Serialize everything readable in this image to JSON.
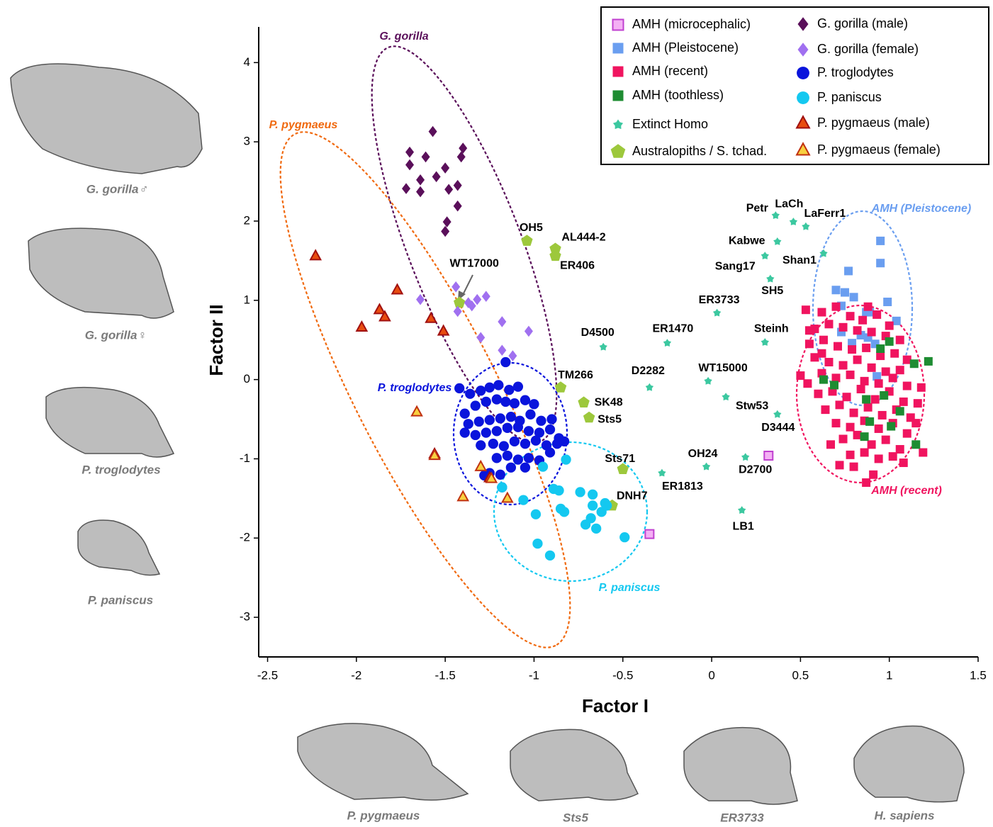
{
  "chart_data": {
    "type": "scatter",
    "xlabel": "Factor I",
    "ylabel": "Factor II",
    "xlim": [
      -2.55,
      1.5
    ],
    "ylim": [
      -3.5,
      4.45
    ],
    "xticks": [
      -2.5,
      -2,
      -1.5,
      -1,
      -0.5,
      0,
      0.5,
      1,
      1.5
    ],
    "yticks": [
      -3,
      -2,
      -1,
      0,
      1,
      2,
      3,
      4
    ],
    "legend": "upper right",
    "group_labels": [
      "G. gorilla",
      "P. pygmaeus",
      "P. troglodytes",
      "P. paniscus",
      "AMH (Pleistocene)",
      "AMH (recent)"
    ],
    "series": [
      {
        "name": "AMH (microcephalic)",
        "marker": "square",
        "color": "#f4b0f4",
        "edgecolor": "#c040d0",
        "x": [
          0.32,
          -0.35
        ],
        "y": [
          -0.96,
          -1.95
        ]
      },
      {
        "name": "AMH (Pleistocene)",
        "marker": "square",
        "color": "#6a9ef0",
        "x": [
          0.95,
          0.95,
          0.77,
          0.7,
          0.75,
          0.73,
          0.8,
          0.87,
          0.89,
          0.99,
          1.04,
          0.73,
          0.79,
          0.88,
          0.92,
          0.93,
          0.84
        ],
        "y": [
          1.75,
          1.47,
          1.37,
          1.13,
          1.1,
          0.93,
          1.04,
          0.85,
          0.85,
          0.98,
          0.74,
          0.6,
          0.46,
          0.53,
          0.45,
          0.04,
          0.56
        ]
      },
      {
        "name": "AMH (recent)",
        "marker": "square",
        "color": "#f0145f",
        "x": [
          0.53,
          0.62,
          0.7,
          0.78,
          0.85,
          0.93,
          1.0,
          0.58,
          0.66,
          0.74,
          0.82,
          0.9,
          0.98,
          1.06,
          0.55,
          0.63,
          0.71,
          0.79,
          0.87,
          0.95,
          1.03,
          1.1,
          0.5,
          0.58,
          0.66,
          0.74,
          0.82,
          0.9,
          0.98,
          1.06,
          0.54,
          0.62,
          0.7,
          0.78,
          0.86,
          0.94,
          1.02,
          1.1,
          1.18,
          0.6,
          0.68,
          0.76,
          0.84,
          0.92,
          1.0,
          1.08,
          1.16,
          0.64,
          0.72,
          0.8,
          0.88,
          0.96,
          1.04,
          1.12,
          0.7,
          0.78,
          0.86,
          0.94,
          1.02,
          1.1,
          0.74,
          0.82,
          0.9,
          0.98,
          1.06,
          0.78,
          0.86,
          0.94,
          1.02,
          0.72,
          0.8,
          0.91,
          1.08,
          0.87,
          1.19,
          0.55,
          0.62,
          0.88,
          0.67,
          1.15
        ],
        "y": [
          0.88,
          0.85,
          0.92,
          0.8,
          0.75,
          0.82,
          0.68,
          0.64,
          0.7,
          0.66,
          0.62,
          0.6,
          0.55,
          0.5,
          0.45,
          0.5,
          0.42,
          0.38,
          0.4,
          0.3,
          0.33,
          0.25,
          0.05,
          0.28,
          0.22,
          0.18,
          0.25,
          0.15,
          0.1,
          0.12,
          -0.05,
          0.08,
          0.02,
          0.06,
          -0.02,
          -0.05,
          0.02,
          -0.08,
          -0.1,
          -0.18,
          -0.15,
          -0.22,
          -0.12,
          -0.25,
          -0.15,
          -0.28,
          -0.3,
          -0.38,
          -0.32,
          -0.42,
          -0.35,
          -0.45,
          -0.38,
          -0.48,
          -0.55,
          -0.6,
          -0.52,
          -0.62,
          -0.55,
          -0.68,
          -0.75,
          -0.7,
          -0.82,
          -0.76,
          -0.88,
          -0.95,
          -0.92,
          -1.0,
          -0.97,
          -1.08,
          -1.1,
          -1.2,
          -1.05,
          -1.3,
          -0.92,
          0.62,
          0.33,
          0.92,
          -0.82,
          -0.55
        ]
      },
      {
        "name": "AMH (toothless)",
        "marker": "square",
        "color": "#1e8c32",
        "x": [
          0.95,
          1.0,
          1.14,
          1.22,
          0.63,
          0.69,
          0.87,
          0.97,
          1.06,
          1.01,
          0.86,
          1.15,
          0.89
        ],
        "y": [
          0.39,
          0.48,
          0.2,
          0.23,
          0.0,
          -0.07,
          -0.25,
          -0.2,
          -0.4,
          -0.59,
          -0.72,
          -0.82,
          -0.53
        ]
      },
      {
        "name": "Extinct Homo",
        "marker": "star",
        "color": "#3cc8a0",
        "x": [
          0.36,
          0.46,
          0.53,
          0.37,
          0.63,
          0.3,
          0.33,
          0.03,
          0.3,
          -0.25,
          -0.61,
          -0.35,
          -0.02,
          0.08,
          0.37,
          -0.03,
          0.19,
          -0.28,
          0.17
        ],
        "y": [
          2.07,
          1.99,
          1.93,
          1.74,
          1.59,
          1.56,
          1.27,
          0.84,
          0.47,
          0.46,
          0.41,
          -0.1,
          -0.02,
          -0.22,
          -0.44,
          -1.1,
          -0.98,
          -1.18,
          -1.65
        ],
        "labels": [
          "Petr",
          "LaCh",
          "LaFerr1",
          "Kabwe",
          "Shan1",
          "Sang17",
          "SH5",
          "ER3733",
          "Steinh",
          "ER1470",
          "D4500",
          "D2282",
          "WT15000",
          "Stw53",
          "D3444",
          "OH24",
          "D2700",
          "ER1813",
          "LB1"
        ]
      },
      {
        "name": "Australopiths / S. tchad.",
        "marker": "pentagon",
        "color": "#9dc83c",
        "x": [
          -1.04,
          -0.88,
          -0.88,
          -1.42,
          -0.85,
          -0.72,
          -0.69,
          -0.5,
          -0.56
        ],
        "y": [
          1.75,
          1.65,
          1.56,
          0.97,
          -0.1,
          -0.29,
          -0.48,
          -1.13,
          -1.59
        ],
        "labels": [
          "OH5",
          "AL444-2",
          "ER406",
          "WT17000",
          "TM266",
          "SK48",
          "Sts5",
          "Sts71",
          "DNH7"
        ]
      },
      {
        "name": "G. gorilla (male)",
        "marker": "diamond",
        "color": "#5a0f5a",
        "x": [
          -1.57,
          -1.7,
          -1.61,
          -1.7,
          -1.5,
          -1.4,
          -1.41,
          -1.72,
          -1.64,
          -1.55,
          -1.64,
          -1.48,
          -1.43,
          -1.43,
          -1.49,
          -1.5
        ],
        "y": [
          3.13,
          2.87,
          2.81,
          2.71,
          2.67,
          2.92,
          2.81,
          2.41,
          2.52,
          2.56,
          2.37,
          2.4,
          2.45,
          2.19,
          1.99,
          1.87
        ]
      },
      {
        "name": "G. gorilla (female)",
        "marker": "diamond",
        "color": "#a070f0",
        "x": [
          -1.44,
          -1.64,
          -1.43,
          -1.37,
          -1.35,
          -1.32,
          -1.27,
          -1.18,
          -1.3,
          -1.03,
          -1.18,
          -1.12
        ],
        "y": [
          1.17,
          1.01,
          0.86,
          0.97,
          0.93,
          1.01,
          1.05,
          0.73,
          0.53,
          0.61,
          0.37,
          0.3
        ]
      },
      {
        "name": "P. troglodytes",
        "marker": "circle",
        "color": "#0a14dc",
        "x": [
          -1.16,
          -1.42,
          -1.36,
          -1.3,
          -1.25,
          -1.2,
          -1.14,
          -1.09,
          -1.39,
          -1.33,
          -1.27,
          -1.21,
          -1.16,
          -1.11,
          -1.05,
          -1.0,
          -1.37,
          -1.31,
          -1.25,
          -1.19,
          -1.13,
          -1.08,
          -1.02,
          -0.96,
          -0.9,
          -1.39,
          -1.33,
          -1.27,
          -1.21,
          -1.15,
          -1.09,
          -1.03,
          -0.97,
          -0.91,
          -0.86,
          -1.3,
          -1.23,
          -1.17,
          -1.11,
          -1.05,
          -0.99,
          -0.93,
          -0.87,
          -0.83,
          -1.21,
          -1.15,
          -1.09,
          -1.03,
          -0.97,
          -0.91,
          -1.25,
          -1.19,
          -1.05,
          -1.13,
          -1.28,
          -1.18
        ],
        "y": [
          0.22,
          -0.11,
          -0.18,
          -0.14,
          -0.1,
          -0.07,
          -0.13,
          -0.09,
          -0.43,
          -0.33,
          -0.28,
          -0.25,
          -0.28,
          -0.3,
          -0.26,
          -0.31,
          -0.56,
          -0.53,
          -0.51,
          -0.49,
          -0.47,
          -0.52,
          -0.44,
          -0.52,
          -0.5,
          -0.67,
          -0.7,
          -0.67,
          -0.65,
          -0.61,
          -0.6,
          -0.65,
          -0.67,
          -0.63,
          -0.74,
          -0.83,
          -0.81,
          -0.84,
          -0.78,
          -0.81,
          -0.77,
          -0.83,
          -0.81,
          -0.78,
          -0.99,
          -0.96,
          -1.01,
          -0.99,
          -1.02,
          -0.92,
          -1.18,
          -1.2,
          -1.11,
          -1.11,
          -1.21,
          -1.36
        ]
      },
      {
        "name": "P. paniscus",
        "marker": "circle",
        "color": "#14c8f0",
        "x": [
          -0.82,
          -0.95,
          -1.18,
          -1.06,
          -0.99,
          -0.89,
          -0.86,
          -0.85,
          -0.83,
          -0.74,
          -0.67,
          -0.67,
          -0.68,
          -0.6,
          -0.62,
          -0.71,
          -0.65,
          -0.98,
          -0.91,
          -0.49,
          -0.59
        ],
        "y": [
          -1.01,
          -1.1,
          -1.36,
          -1.52,
          -1.7,
          -1.38,
          -1.4,
          -1.63,
          -1.67,
          -1.42,
          -1.45,
          -1.59,
          -1.75,
          -1.56,
          -1.67,
          -1.83,
          -1.88,
          -2.07,
          -2.22,
          -1.99,
          -1.59
        ]
      },
      {
        "name": "P. pygmaeus (male)",
        "marker": "triangle",
        "color": "#e84d10",
        "edgecolor": "#a01010",
        "x": [
          -2.23,
          -1.77,
          -1.87,
          -1.84,
          -1.97,
          -1.58,
          -1.51,
          -1.56,
          -1.25
        ],
        "y": [
          1.56,
          1.13,
          0.88,
          0.79,
          0.66,
          0.77,
          0.61,
          -0.94,
          -1.24
        ]
      },
      {
        "name": "P. pygmaeus (female)",
        "marker": "triangle",
        "color": "#f8d040",
        "edgecolor": "#c03010",
        "x": [
          -1.66,
          -1.3,
          -1.4,
          -1.15,
          -1.24,
          -1.56
        ],
        "y": [
          -0.41,
          -1.1,
          -1.48,
          -1.5,
          -1.25,
          -0.96
        ]
      }
    ]
  },
  "skull_captions": [
    "G. gorilla♂",
    "G. gorilla♀",
    "P. troglodytes",
    "P. paniscus",
    "P. pygmaeus",
    "Sts5",
    "ER3733",
    "H. sapiens"
  ]
}
